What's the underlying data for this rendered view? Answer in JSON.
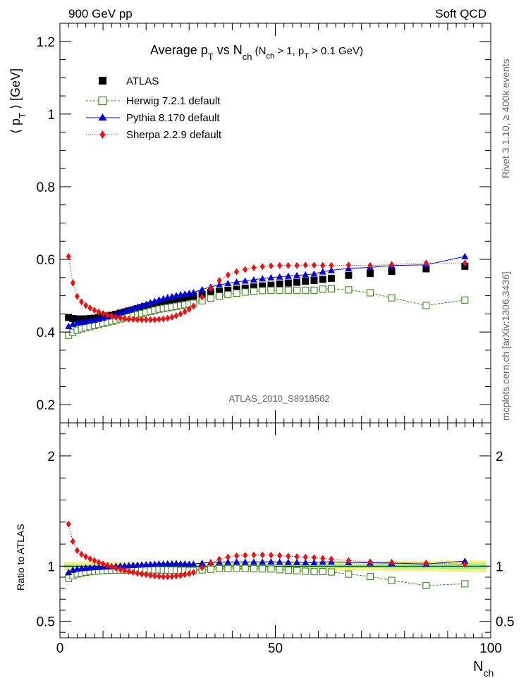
{
  "header": {
    "left": "900 GeV pp",
    "right": "Soft QCD"
  },
  "side_labels": {
    "top": "Rivet 3.1.10, ≥ 400k events",
    "bottom": "mcplots.cern.ch [arXiv:1306.3436]"
  },
  "watermark": "ATLAS_2010_S8918562",
  "colors": {
    "atlas": "#000000",
    "herwig": "#3a8a1a",
    "pythia": "#0000dd",
    "sherpa": "#ee1111",
    "band_inner": "#99ee99",
    "band_outer": "#f2f27a"
  },
  "chart_data": [
    {
      "type": "scatter",
      "panel": "main",
      "title": "Average p_T vs N_ch (N_ch > 1, p_T > 0.1 GeV)",
      "title_parts": {
        "main": "Average p",
        "main_sub": "T",
        "vs": " vs N",
        "vs_sub": "ch",
        "paren_open": " (N",
        "paren_sub1": "ch",
        "paren_mid": " > 1, p",
        "paren_sub2": "T",
        "paren_close": " > 0.1 GeV)"
      },
      "ylabel": "⟨ p_T ⟩ [GeV]",
      "ylabel_parts": {
        "open": "⟨ p",
        "sub": "T",
        "close": " ⟩ [GeV]"
      },
      "xlim": [
        0,
        100
      ],
      "ylim": [
        0.15,
        1.25
      ],
      "yticks": [
        "0.2",
        "0.4",
        "0.6",
        "0.8",
        "1",
        "1.2"
      ],
      "legend": {
        "position": "top-left"
      },
      "series": [
        {
          "name": "ATLAS",
          "marker": "filled-square",
          "x": [
            2,
            3,
            4,
            5,
            6,
            7,
            8,
            9,
            10,
            11,
            12,
            13,
            14,
            15,
            16,
            17,
            18,
            19,
            20,
            21,
            22,
            23,
            24,
            25,
            26,
            27,
            28,
            29,
            30,
            31,
            33,
            35,
            37,
            39,
            41,
            43,
            45,
            47,
            49,
            51,
            53,
            55,
            57,
            59,
            61,
            63,
            67,
            72,
            77,
            85,
            94
          ],
          "y": [
            0.44,
            0.437,
            0.436,
            0.436,
            0.436,
            0.437,
            0.438,
            0.44,
            0.442,
            0.444,
            0.446,
            0.449,
            0.452,
            0.455,
            0.458,
            0.461,
            0.464,
            0.467,
            0.47,
            0.473,
            0.476,
            0.479,
            0.482,
            0.484,
            0.487,
            0.489,
            0.492,
            0.494,
            0.497,
            0.499,
            0.503,
            0.507,
            0.511,
            0.515,
            0.518,
            0.521,
            0.524,
            0.527,
            0.529,
            0.532,
            0.535,
            0.537,
            0.54,
            0.542,
            0.545,
            0.548,
            0.556,
            0.561,
            0.567,
            0.574,
            0.581
          ]
        },
        {
          "name": "Herwig 7.2.1 default",
          "marker": "open-square",
          "x": [
            2,
            3,
            4,
            5,
            6,
            7,
            8,
            9,
            10,
            11,
            12,
            13,
            14,
            15,
            16,
            17,
            18,
            19,
            20,
            21,
            22,
            23,
            24,
            25,
            26,
            27,
            28,
            29,
            30,
            31,
            33,
            35,
            37,
            39,
            41,
            43,
            45,
            47,
            49,
            51,
            53,
            55,
            57,
            59,
            61,
            63,
            67,
            72,
            77,
            85,
            94
          ],
          "y": [
            0.391,
            0.399,
            0.405,
            0.409,
            0.412,
            0.415,
            0.418,
            0.421,
            0.424,
            0.427,
            0.43,
            0.433,
            0.436,
            0.439,
            0.442,
            0.445,
            0.448,
            0.451,
            0.454,
            0.457,
            0.46,
            0.463,
            0.465,
            0.467,
            0.469,
            0.471,
            0.473,
            0.475,
            0.477,
            0.479,
            0.486,
            0.493,
            0.499,
            0.503,
            0.507,
            0.51,
            0.512,
            0.514,
            0.515,
            0.515,
            0.515,
            0.515,
            0.515,
            0.515,
            0.518,
            0.519,
            0.516,
            0.508,
            0.494,
            0.473,
            0.488
          ]
        },
        {
          "name": "Pythia 8.170 default",
          "marker": "filled-triangle",
          "x": [
            2,
            3,
            4,
            5,
            6,
            7,
            8,
            9,
            10,
            11,
            12,
            13,
            14,
            15,
            16,
            17,
            18,
            19,
            20,
            21,
            22,
            23,
            24,
            25,
            26,
            27,
            28,
            29,
            30,
            31,
            33,
            35,
            37,
            39,
            41,
            43,
            45,
            47,
            49,
            51,
            53,
            55,
            57,
            59,
            61,
            63,
            67,
            72,
            77,
            85,
            94
          ],
          "y": [
            0.416,
            0.422,
            0.425,
            0.427,
            0.429,
            0.431,
            0.433,
            0.436,
            0.439,
            0.442,
            0.445,
            0.449,
            0.453,
            0.457,
            0.461,
            0.465,
            0.469,
            0.473,
            0.477,
            0.481,
            0.485,
            0.489,
            0.492,
            0.495,
            0.498,
            0.501,
            0.503,
            0.505,
            0.507,
            0.509,
            0.517,
            0.524,
            0.53,
            0.534,
            0.538,
            0.541,
            0.544,
            0.547,
            0.55,
            0.552,
            0.554,
            0.556,
            0.558,
            0.56,
            0.566,
            0.57,
            0.575,
            0.578,
            0.583,
            0.585,
            0.608
          ]
        },
        {
          "name": "Sherpa 2.2.9 default",
          "marker": "filled-diamond",
          "x": [
            2,
            3,
            4,
            5,
            6,
            7,
            8,
            9,
            10,
            11,
            12,
            13,
            14,
            15,
            16,
            17,
            18,
            19,
            20,
            21,
            22,
            23,
            24,
            25,
            26,
            27,
            28,
            29,
            30,
            31,
            33,
            35,
            37,
            39,
            41,
            43,
            45,
            47,
            49,
            51,
            53,
            55,
            57,
            59,
            61,
            63,
            67,
            72,
            77,
            85,
            94
          ],
          "y": [
            0.608,
            0.535,
            0.498,
            0.483,
            0.473,
            0.466,
            0.46,
            0.455,
            0.451,
            0.447,
            0.444,
            0.441,
            0.439,
            0.437,
            0.436,
            0.435,
            0.434,
            0.434,
            0.434,
            0.434,
            0.434,
            0.435,
            0.436,
            0.438,
            0.441,
            0.445,
            0.45,
            0.456,
            0.463,
            0.471,
            0.496,
            0.52,
            0.542,
            0.557,
            0.566,
            0.572,
            0.577,
            0.58,
            0.582,
            0.583,
            0.583,
            0.583,
            0.584,
            0.584,
            0.583,
            0.583,
            0.584,
            0.583,
            0.586,
            0.59,
            0.59
          ]
        }
      ]
    },
    {
      "type": "scatter",
      "panel": "ratio",
      "ylabel": "Ratio to ATLAS",
      "xlabel": "N_ch",
      "xlabel_parts": {
        "main": "N",
        "sub": "ch"
      },
      "xlim": [
        0,
        100
      ],
      "ylim": [
        0.35,
        2.3
      ],
      "xticks": [
        "0",
        "50",
        "100"
      ],
      "yticks": [
        "0.5",
        "1",
        "2"
      ],
      "band": {
        "inner_halfwidth": [
          0.015,
          0.015,
          0.016,
          0.017,
          0.02,
          0.025,
          0.03
        ],
        "outer_halfwidth": [
          0.04,
          0.04,
          0.04,
          0.04,
          0.045,
          0.05,
          0.055
        ],
        "x_edges": [
          1,
          20,
          40,
          60,
          75,
          88,
          99
        ]
      },
      "series": [
        {
          "name": "Herwig 7.2.1 default",
          "x": [
            2,
            3,
            4,
            5,
            6,
            7,
            8,
            9,
            10,
            11,
            12,
            13,
            14,
            15,
            16,
            17,
            18,
            19,
            20,
            21,
            22,
            23,
            24,
            25,
            26,
            27,
            28,
            29,
            30,
            31,
            33,
            35,
            37,
            39,
            41,
            43,
            45,
            47,
            49,
            51,
            53,
            55,
            57,
            59,
            61,
            63,
            67,
            72,
            77,
            85,
            94
          ],
          "y": [
            0.889,
            0.913,
            0.929,
            0.938,
            0.945,
            0.95,
            0.954,
            0.957,
            0.959,
            0.962,
            0.964,
            0.964,
            0.965,
            0.965,
            0.965,
            0.965,
            0.966,
            0.966,
            0.966,
            0.966,
            0.966,
            0.967,
            0.965,
            0.965,
            0.963,
            0.963,
            0.961,
            0.962,
            0.96,
            0.96,
            0.966,
            0.972,
            0.977,
            0.977,
            0.979,
            0.979,
            0.977,
            0.975,
            0.974,
            0.968,
            0.963,
            0.959,
            0.954,
            0.95,
            0.951,
            0.947,
            0.928,
            0.906,
            0.871,
            0.824,
            0.84
          ]
        },
        {
          "name": "Pythia 8.170 default",
          "x": [
            2,
            3,
            4,
            5,
            6,
            7,
            8,
            9,
            10,
            11,
            12,
            13,
            14,
            15,
            16,
            17,
            18,
            19,
            20,
            21,
            22,
            23,
            24,
            25,
            26,
            27,
            28,
            29,
            30,
            31,
            33,
            35,
            37,
            39,
            41,
            43,
            45,
            47,
            49,
            51,
            53,
            55,
            57,
            59,
            61,
            63,
            67,
            72,
            77,
            85,
            94
          ],
          "y": [
            0.945,
            0.966,
            0.975,
            0.979,
            0.984,
            0.986,
            0.989,
            0.991,
            0.993,
            0.995,
            0.998,
            1.0,
            1.002,
            1.004,
            1.007,
            1.009,
            1.011,
            1.013,
            1.015,
            1.017,
            1.019,
            1.021,
            1.021,
            1.023,
            1.023,
            1.025,
            1.022,
            1.022,
            1.02,
            1.02,
            1.028,
            1.034,
            1.037,
            1.037,
            1.039,
            1.038,
            1.038,
            1.038,
            1.04,
            1.038,
            1.036,
            1.035,
            1.033,
            1.033,
            1.039,
            1.04,
            1.034,
            1.03,
            1.028,
            1.019,
            1.046
          ]
        },
        {
          "name": "Sherpa 2.2.9 default",
          "x": [
            2,
            3,
            4,
            5,
            6,
            7,
            8,
            9,
            10,
            11,
            12,
            13,
            14,
            15,
            16,
            17,
            18,
            19,
            20,
            21,
            22,
            23,
            24,
            25,
            26,
            27,
            28,
            29,
            30,
            31,
            33,
            35,
            37,
            39,
            41,
            43,
            45,
            47,
            49,
            51,
            53,
            55,
            57,
            59,
            61,
            63,
            67,
            72,
            77,
            85,
            94
          ],
          "y": [
            1.382,
            1.224,
            1.142,
            1.108,
            1.085,
            1.066,
            1.05,
            1.034,
            1.02,
            1.007,
            0.996,
            0.982,
            0.971,
            0.96,
            0.952,
            0.944,
            0.935,
            0.929,
            0.923,
            0.917,
            0.912,
            0.908,
            0.905,
            0.905,
            0.906,
            0.91,
            0.915,
            0.923,
            0.932,
            0.944,
            0.986,
            1.026,
            1.061,
            1.082,
            1.093,
            1.098,
            1.101,
            1.101,
            1.1,
            1.096,
            1.09,
            1.086,
            1.081,
            1.077,
            1.07,
            1.064,
            1.05,
            1.039,
            1.034,
            1.028,
            1.016
          ]
        }
      ]
    }
  ]
}
